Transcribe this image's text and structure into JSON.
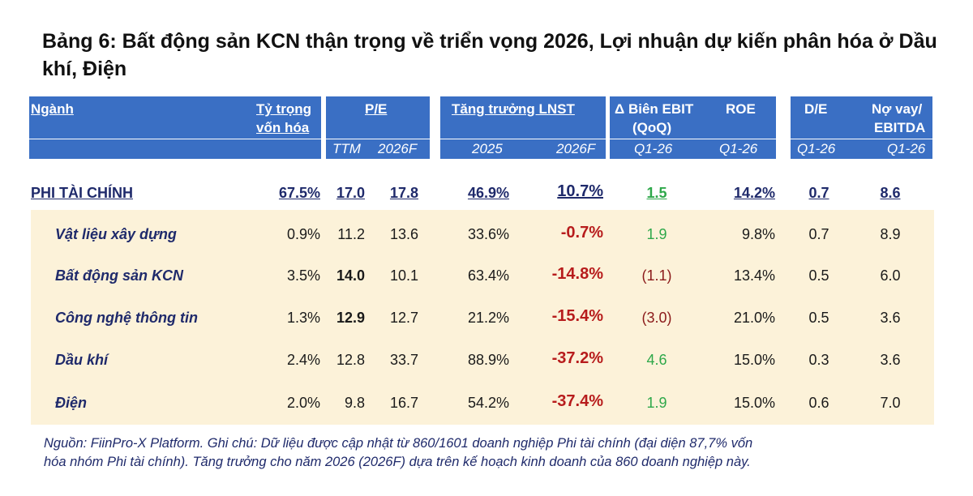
{
  "title": "Bảng 6: Bất động sản KCN thận trọng về triển vọng 2026, Lợi nhuận dự kiến phân hóa ở Dầu khí, Điện",
  "header": {
    "nganh": "Ngành",
    "ty_trong_1": "Tỷ trọng",
    "ty_trong_2": "vốn hóa",
    "pe": "P/E",
    "tang_truong": "Tăng trưởng LNST",
    "bien_ebit_1": "Δ Biên EBIT",
    "bien_ebit_2": "(QoQ)",
    "roe": "ROE",
    "de": "D/E",
    "no_vay_1": "Nợ vay/",
    "no_vay_2": "EBITDA"
  },
  "subheader": {
    "ttm": "TTM",
    "pe_2026f": "2026F",
    "ln_2025": "2025",
    "ln_2026f": "2026F",
    "ebit_q": "Q1-26",
    "roe_q": "Q1-26",
    "de_q": "Q1-26",
    "no_q": "Q1-26"
  },
  "total": {
    "name": "PHI TÀI CHÍNH",
    "weight": "67.5%",
    "pe_ttm": "17.0",
    "pe_2026f": "17.8",
    "growth_2025": "46.9%",
    "growth_2026f": "10.7%",
    "ebit_margin": "1.5",
    "roe": "14.2%",
    "de": "0.7",
    "debt_ebitda": "8.6"
  },
  "rows": [
    {
      "name": "Vật liệu xây dựng",
      "weight": "0.9%",
      "pe_ttm": "11.2",
      "pe_2026f": "13.6",
      "growth_2025": "33.6%",
      "growth_2026f": "-0.7%",
      "ebit_margin": "1.9",
      "roe": "9.8%",
      "de": "0.7",
      "debt_ebitda": "8.9"
    },
    {
      "name": "Bất động sản KCN",
      "weight": "3.5%",
      "pe_ttm": "14.0",
      "pe_2026f": "10.1",
      "growth_2025": "63.4%",
      "growth_2026f": "-14.8%",
      "ebit_margin": "(1.1)",
      "roe": "13.4%",
      "de": "0.5",
      "debt_ebitda": "6.0"
    },
    {
      "name": "Công nghệ thông tin",
      "weight": "1.3%",
      "pe_ttm": "12.9",
      "pe_2026f": "12.7",
      "growth_2025": "21.2%",
      "growth_2026f": "-15.4%",
      "ebit_margin": "(3.0)",
      "roe": "21.0%",
      "de": "0.5",
      "debt_ebitda": "3.6"
    },
    {
      "name": "Dầu khí",
      "weight": "2.4%",
      "pe_ttm": "12.8",
      "pe_2026f": "33.7",
      "growth_2025": "88.9%",
      "growth_2026f": "-37.2%",
      "ebit_margin": "4.6",
      "roe": "15.0%",
      "de": "0.3",
      "debt_ebitda": "3.6"
    },
    {
      "name": "Điện",
      "weight": "2.0%",
      "pe_ttm": "9.8",
      "pe_2026f": "16.7",
      "growth_2025": "54.2%",
      "growth_2026f": "-37.4%",
      "ebit_margin": "1.9",
      "roe": "15.0%",
      "de": "0.6",
      "debt_ebitda": "7.0"
    }
  ],
  "note_line1": "Nguồn: FiinPro-X Platform. Ghi chú: Dữ liệu được cập nhật từ 860/1601 doanh nghiệp Phi tài chính (đại diện 87,7% vốn",
  "note_line2": "hóa nhóm Phi tài chính). Tăng trưởng cho năm 2026 (2026F) dựa trên kế hoạch kinh doanh của 860 doanh nghiệp này.",
  "colors": {
    "header_bg": "#3a6fc4",
    "row_band": "#fcf2d9",
    "positive_growth": "#38a84e",
    "negative_growth": "#b71c1c",
    "positive_margin": "#2ea84a"
  }
}
